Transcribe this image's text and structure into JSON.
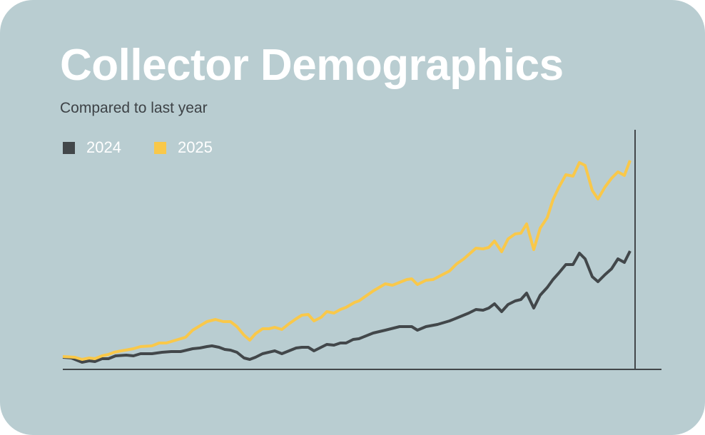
{
  "colors": {
    "background": "#b9cdd1",
    "series_2024": "#42474a",
    "series_2025": "#f9c84a",
    "title": "#ffffff",
    "axis": "#42474a"
  },
  "header": {
    "title": "Collector Demographics",
    "subtitle": "Compared to last year"
  },
  "chart_data": {
    "type": "line",
    "title": "Collector Demographics",
    "subtitle": "Compared to last year",
    "xlabel": "",
    "ylabel": "",
    "xlim": [
      0,
      800
    ],
    "ylim": [
      0,
      336
    ],
    "grid": false,
    "legend_placement": "top-left",
    "series": [
      {
        "name": "2024",
        "color": "#42474a",
        "points": [
          [
            0,
            17
          ],
          [
            12,
            16
          ],
          [
            27,
            10
          ],
          [
            37,
            12
          ],
          [
            45,
            11
          ],
          [
            55,
            15
          ],
          [
            64,
            15
          ],
          [
            74,
            19
          ],
          [
            89,
            20
          ],
          [
            99,
            19
          ],
          [
            109,
            22
          ],
          [
            125,
            22
          ],
          [
            139,
            24
          ],
          [
            152,
            25
          ],
          [
            165,
            25
          ],
          [
            182,
            29
          ],
          [
            192,
            30
          ],
          [
            202,
            32
          ],
          [
            209,
            33
          ],
          [
            219,
            31
          ],
          [
            227,
            28
          ],
          [
            235,
            27
          ],
          [
            244,
            24
          ],
          [
            254,
            16
          ],
          [
            262,
            14
          ],
          [
            270,
            17
          ],
          [
            280,
            22
          ],
          [
            297,
            26
          ],
          [
            307,
            22
          ],
          [
            317,
            26
          ],
          [
            327,
            30
          ],
          [
            335,
            31
          ],
          [
            344,
            31
          ],
          [
            352,
            26
          ],
          [
            362,
            31
          ],
          [
            370,
            35
          ],
          [
            380,
            34
          ],
          [
            389,
            37
          ],
          [
            397,
            37
          ],
          [
            407,
            42
          ],
          [
            415,
            43
          ],
          [
            435,
            51
          ],
          [
            452,
            55
          ],
          [
            472,
            60
          ],
          [
            489,
            60
          ],
          [
            497,
            55
          ],
          [
            509,
            60
          ],
          [
            525,
            63
          ],
          [
            542,
            68
          ],
          [
            552,
            72
          ],
          [
            569,
            79
          ],
          [
            579,
            84
          ],
          [
            589,
            83
          ],
          [
            597,
            86
          ],
          [
            605,
            92
          ],
          [
            615,
            81
          ],
          [
            624,
            91
          ],
          [
            634,
            96
          ],
          [
            642,
            98
          ],
          [
            650,
            107
          ],
          [
            660,
            86
          ],
          [
            669,
            104
          ],
          [
            679,
            115
          ],
          [
            687,
            126
          ],
          [
            695,
            135
          ],
          [
            705,
            147
          ],
          [
            715,
            147
          ],
          [
            724,
            163
          ],
          [
            732,
            155
          ],
          [
            742,
            130
          ],
          [
            750,
            123
          ],
          [
            760,
            133
          ],
          [
            769,
            141
          ],
          [
            778,
            155
          ],
          [
            787,
            150
          ],
          [
            795,
            166
          ]
        ]
      },
      {
        "name": "2025",
        "color": "#f9c84a",
        "points": [
          [
            0,
            18
          ],
          [
            17,
            17
          ],
          [
            27,
            14
          ],
          [
            37,
            16
          ],
          [
            45,
            15
          ],
          [
            55,
            19
          ],
          [
            64,
            21
          ],
          [
            72,
            24
          ],
          [
            82,
            26
          ],
          [
            99,
            29
          ],
          [
            109,
            32
          ],
          [
            125,
            33
          ],
          [
            135,
            37
          ],
          [
            145,
            37
          ],
          [
            155,
            40
          ],
          [
            172,
            45
          ],
          [
            182,
            55
          ],
          [
            192,
            61
          ],
          [
            202,
            67
          ],
          [
            214,
            70
          ],
          [
            225,
            67
          ],
          [
            235,
            67
          ],
          [
            244,
            60
          ],
          [
            254,
            48
          ],
          [
            262,
            41
          ],
          [
            270,
            50
          ],
          [
            280,
            57
          ],
          [
            289,
            57
          ],
          [
            297,
            59
          ],
          [
            307,
            56
          ],
          [
            317,
            64
          ],
          [
            327,
            71
          ],
          [
            335,
            76
          ],
          [
            344,
            77
          ],
          [
            352,
            68
          ],
          [
            362,
            73
          ],
          [
            370,
            81
          ],
          [
            380,
            79
          ],
          [
            389,
            84
          ],
          [
            397,
            87
          ],
          [
            409,
            94
          ],
          [
            415,
            96
          ],
          [
            435,
            110
          ],
          [
            452,
            120
          ],
          [
            462,
            118
          ],
          [
            482,
            126
          ],
          [
            489,
            127
          ],
          [
            497,
            119
          ],
          [
            509,
            125
          ],
          [
            519,
            126
          ],
          [
            542,
            138
          ],
          [
            552,
            148
          ],
          [
            562,
            155
          ],
          [
            579,
            170
          ],
          [
            589,
            169
          ],
          [
            597,
            171
          ],
          [
            605,
            180
          ],
          [
            615,
            165
          ],
          [
            624,
            183
          ],
          [
            634,
            190
          ],
          [
            642,
            191
          ],
          [
            650,
            204
          ],
          [
            660,
            168
          ],
          [
            669,
            198
          ],
          [
            679,
            213
          ],
          [
            687,
            238
          ],
          [
            695,
            255
          ],
          [
            705,
            273
          ],
          [
            715,
            271
          ],
          [
            724,
            290
          ],
          [
            732,
            286
          ],
          [
            742,
            251
          ],
          [
            750,
            239
          ],
          [
            760,
            256
          ],
          [
            769,
            268
          ],
          [
            778,
            277
          ],
          [
            787,
            272
          ],
          [
            795,
            293
          ]
        ]
      }
    ]
  }
}
